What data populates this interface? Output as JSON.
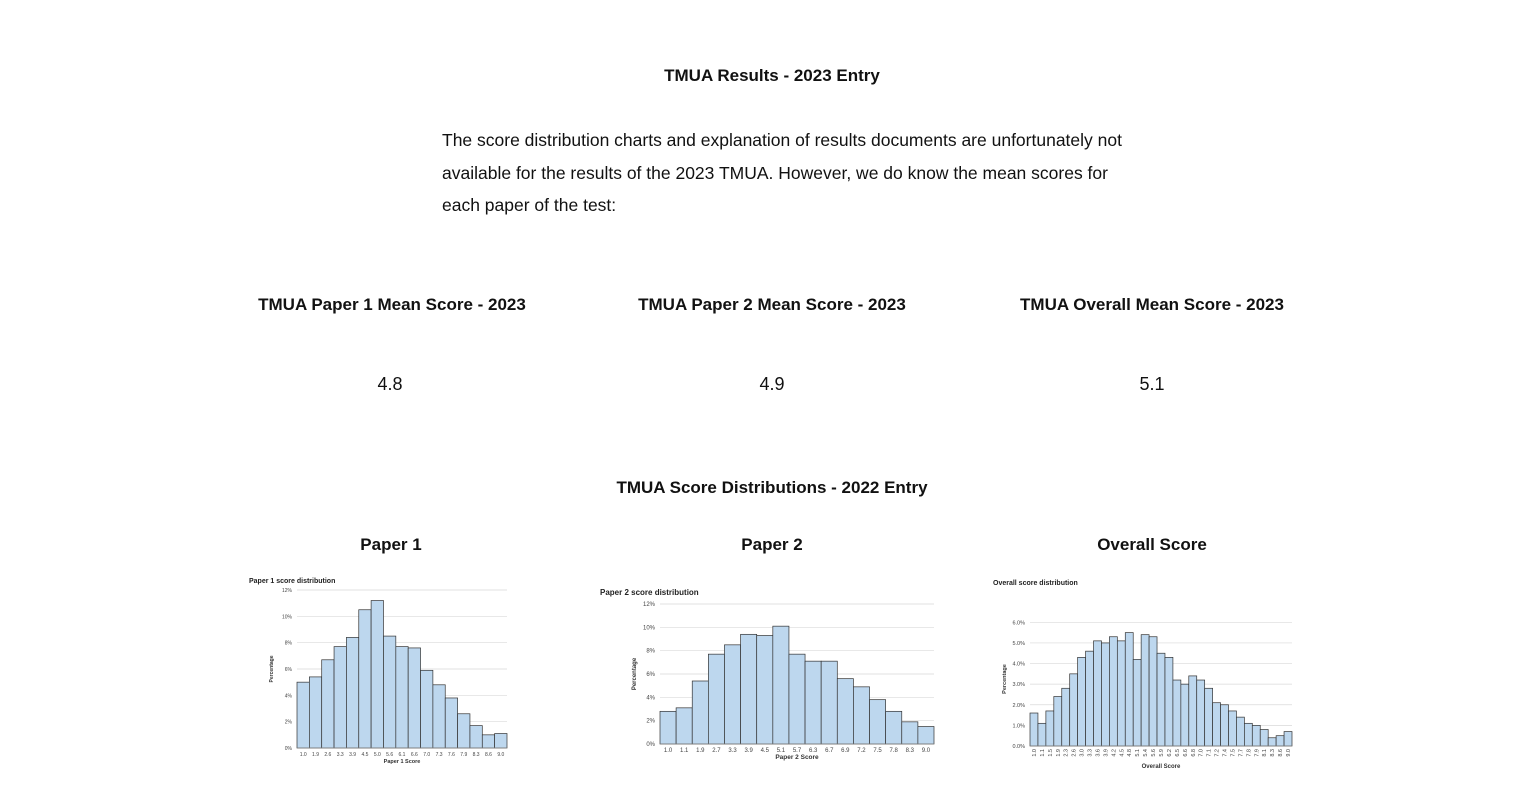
{
  "header": {
    "title": "TMUA Results - 2023 Entry",
    "intro": "The score distribution charts and explanation of results documents are unfortunately not available for the results of the 2023 TMUA. However, we do know the mean scores for each paper of the test:"
  },
  "means": [
    {
      "label": "TMUA Paper 1 Mean Score - 2023",
      "value": "4.8"
    },
    {
      "label": "TMUA Paper 2 Mean Score - 2023",
      "value": "4.9"
    },
    {
      "label": "TMUA Overall Mean Score - 2023",
      "value": "5.1"
    }
  ],
  "distributions_title": "TMUA Score Distributions - 2022 Entry",
  "panel_titles": [
    "Paper 1",
    "Paper 2",
    "Overall Score"
  ],
  "chart_data": [
    {
      "type": "bar",
      "title": "Paper 1 score distribution",
      "x_label": "Paper 1 Score",
      "y_label": "Percentage",
      "color": "#bdd7ee",
      "grid": true,
      "categories": [
        "1.0",
        "1.9",
        "2.6",
        "3.3",
        "3.9",
        "4.5",
        "5.0",
        "5.6",
        "6.1",
        "6.6",
        "7.0",
        "7.3",
        "7.6",
        "7.9",
        "8.3",
        "8.6",
        "9.0"
      ],
      "values": [
        5.0,
        5.4,
        6.7,
        7.7,
        8.4,
        10.5,
        11.2,
        8.5,
        7.7,
        7.6,
        5.9,
        4.8,
        3.8,
        2.6,
        1.7,
        1.0,
        1.1
      ],
      "ylim": [
        0,
        12
      ],
      "yticks": [
        {
          "value": 0,
          "label": "0%"
        },
        {
          "value": 2,
          "label": "2%"
        },
        {
          "value": 4,
          "label": "4%"
        },
        {
          "value": 6,
          "label": "6%"
        },
        {
          "value": 8,
          "label": "8%"
        },
        {
          "value": 10,
          "label": "10%"
        },
        {
          "value": 12,
          "label": "12%"
        }
      ]
    },
    {
      "type": "bar",
      "title": "Paper 2 score distribution",
      "x_label": "Paper 2 Score",
      "y_label": "Percentage",
      "color": "#bdd7ee",
      "grid": true,
      "categories": [
        "1.0",
        "1.1",
        "1.9",
        "2.7",
        "3.3",
        "3.9",
        "4.5",
        "5.1",
        "5.7",
        "6.3",
        "6.7",
        "6.9",
        "7.2",
        "7.5",
        "7.8",
        "8.3",
        "9.0"
      ],
      "values": [
        2.8,
        3.1,
        5.4,
        7.7,
        8.5,
        9.4,
        9.3,
        10.1,
        7.7,
        7.1,
        7.1,
        5.6,
        4.9,
        3.8,
        2.8,
        1.9,
        1.5
      ],
      "ylim": [
        0,
        12
      ],
      "yticks": [
        {
          "value": 0,
          "label": "0%"
        },
        {
          "value": 2,
          "label": "2%"
        },
        {
          "value": 4,
          "label": "4%"
        },
        {
          "value": 6,
          "label": "6%"
        },
        {
          "value": 8,
          "label": "8%"
        },
        {
          "value": 10,
          "label": "10%"
        },
        {
          "value": 12,
          "label": "12%"
        }
      ]
    },
    {
      "type": "bar",
      "title": "Overall score distribution",
      "x_label": "Overall Score",
      "y_label": "Percentage",
      "color": "#bdd7ee",
      "grid": true,
      "categories": [
        "1.0",
        "1.1",
        "1.5",
        "1.9",
        "2.3",
        "2.6",
        "3.0",
        "3.3",
        "3.6",
        "3.9",
        "4.2",
        "4.5",
        "4.8",
        "5.1",
        "5.4",
        "5.6",
        "5.9",
        "6.2",
        "6.5",
        "6.6",
        "6.8",
        "7.0",
        "7.1",
        "7.2",
        "7.4",
        "7.5",
        "7.7",
        "7.8",
        "7.9",
        "8.1",
        "8.3",
        "8.6",
        "9.0"
      ],
      "values": [
        1.6,
        1.1,
        1.7,
        2.4,
        2.8,
        3.5,
        4.3,
        4.6,
        5.1,
        5.0,
        5.3,
        5.1,
        5.5,
        4.2,
        5.4,
        5.3,
        4.5,
        4.3,
        3.2,
        3.0,
        3.4,
        3.2,
        2.8,
        2.1,
        2.0,
        1.7,
        1.4,
        1.1,
        1.0,
        0.8,
        0.4,
        0.5,
        0.7
      ],
      "ylim": [
        0,
        6.5
      ],
      "yticks": [
        {
          "value": 0,
          "label": "0.0%"
        },
        {
          "value": 1,
          "label": "1.0%"
        },
        {
          "value": 2,
          "label": "2.0%"
        },
        {
          "value": 3,
          "label": "3.0%"
        },
        {
          "value": 4,
          "label": "4.0%"
        },
        {
          "value": 5,
          "label": "5.0%"
        },
        {
          "value": 6,
          "label": "6.0%"
        }
      ]
    }
  ]
}
